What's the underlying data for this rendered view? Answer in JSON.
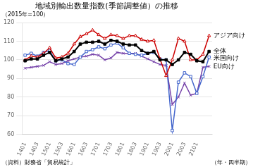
{
  "chart_data": {
    "type": "line",
    "title": "地域別輸出数量指数(季節調整値）の推移",
    "ylabel": "（2015年=100）",
    "xlabel": "（年・四半期）",
    "annotations": [
      "（資料）財務省「貿易統計」"
    ],
    "categories": [
      "1401",
      null,
      "1403",
      null,
      "1501",
      null,
      "1503",
      null,
      "1601",
      null,
      "1603",
      null,
      "1701",
      null,
      "1703",
      null,
      "1801",
      null,
      "1803",
      null,
      "1901",
      null,
      "1903",
      null,
      "2001",
      null,
      "2003",
      null,
      "2101",
      null,
      null
    ],
    "series": [
      {
        "name": "全体",
        "color": "#000000",
        "marker": "square",
        "values": [
          99.5,
          100.5,
          100.5,
          102.5,
          104.0,
          99.5,
          100.5,
          101.5,
          104.5,
          108.5,
          109.5,
          109.5,
          110.0,
          108.5,
          110.5,
          110.0,
          108.5,
          108.0,
          108.0,
          105.0,
          103.5,
          104.5,
          100.0,
          100.0,
          97.5,
          100.0,
          104.0,
          103.0,
          99.5,
          99.0,
          104.5
        ]
      },
      {
        "name": "アジア向け",
        "color": "#cc0000",
        "marker": "triangle_open",
        "values": [
          100.0,
          102.0,
          101.5,
          103.5,
          106.5,
          101.0,
          101.5,
          103.5,
          108.5,
          112.5,
          114.0,
          116.0,
          113.5,
          111.5,
          113.5,
          113.0,
          111.5,
          113.0,
          113.0,
          111.0,
          110.0,
          110.5,
          100.5,
          91.5,
          100.0,
          111.5,
          110.0,
          100.0,
          100.0,
          103.0,
          113.0
        ]
      },
      {
        "name": "米国向け",
        "color": "#4466cc",
        "marker": "square_open",
        "values": [
          102.5,
          103.5,
          102.0,
          104.0,
          105.0,
          99.5,
          100.0,
          98.0,
          97.5,
          101.5,
          104.5,
          105.5,
          107.0,
          106.0,
          108.0,
          109.0,
          106.5,
          103.5,
          103.0,
          102.5,
          103.5,
          104.0,
          100.5,
          100.0,
          62.0,
          88.0,
          93.0,
          91.0,
          82.0,
          91.0,
          101.5
        ]
      },
      {
        "name": "EU向け",
        "color": "#7744aa",
        "marker": "x",
        "values": [
          95.5,
          96.0,
          96.5,
          97.0,
          99.0,
          97.5,
          98.0,
          99.5,
          100.5,
          101.5,
          102.0,
          103.0,
          102.5,
          100.0,
          101.0,
          104.0,
          103.5,
          103.5,
          103.5,
          102.0,
          100.5,
          99.0,
          97.5,
          97.0,
          76.0,
          80.0,
          87.5,
          81.0,
          82.0,
          96.0,
          96.5
        ]
      }
    ],
    "ylim": [
      60,
      120
    ],
    "yticks": [
      60,
      70,
      80,
      90,
      100,
      110,
      120
    ],
    "grid": true,
    "legend": false
  }
}
